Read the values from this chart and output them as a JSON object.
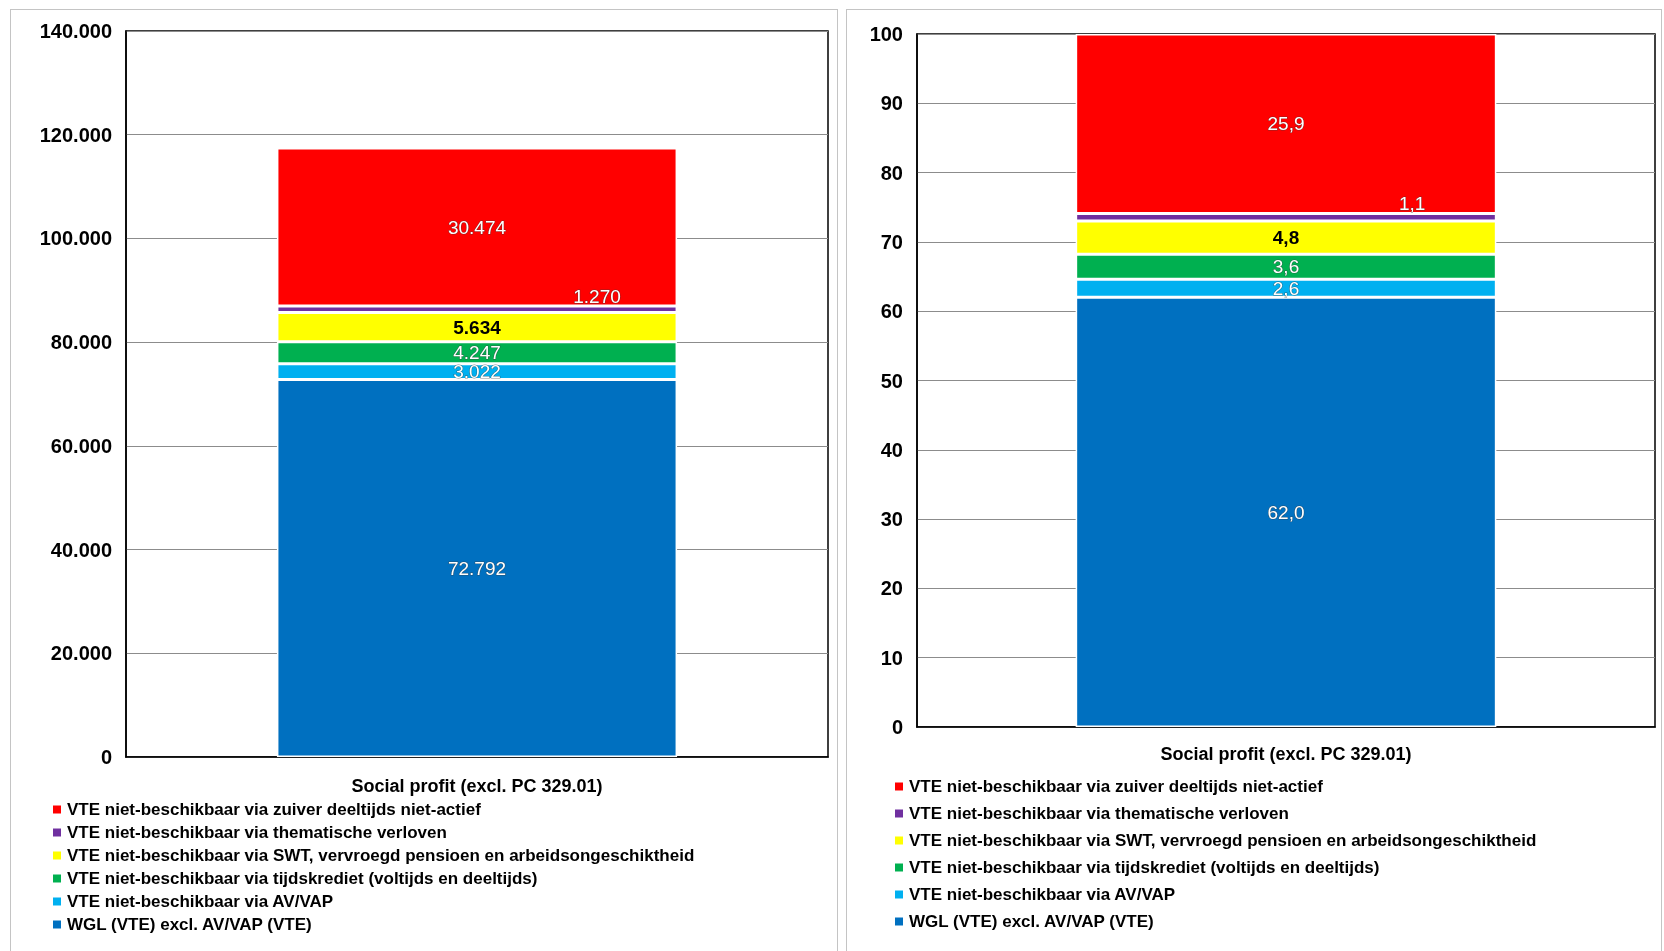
{
  "chart_data": [
    {
      "type": "bar",
      "stacked": true,
      "categories": [
        "Social profit (excl. PC 329.01)"
      ],
      "series": [
        {
          "name": "WGL (VTE) excl. AV/VAP (VTE)",
          "color": "#0070c0",
          "values": [
            72792
          ],
          "value_labels": [
            "72.792"
          ]
        },
        {
          "name": "VTE niet-beschikbaar via AV/VAP",
          "color": "#00b0f0",
          "values": [
            3022
          ],
          "value_labels": [
            "3.022"
          ]
        },
        {
          "name": "VTE niet-beschikbaar via tijdskrediet (voltijds en deeltijds)",
          "color": "#00b050",
          "values": [
            4247
          ],
          "value_labels": [
            "4.247"
          ]
        },
        {
          "name": "VTE niet-beschikbaar via SWT, vervroegd pensioen en arbeidsongeschiktheid",
          "color": "#ffff00",
          "values": [
            5634
          ],
          "value_labels": [
            "5.634"
          ]
        },
        {
          "name": "VTE niet-beschikbaar via thematische verloven",
          "color": "#7030a0",
          "values": [
            1270
          ],
          "value_labels": [
            "1.270"
          ]
        },
        {
          "name": "VTE niet-beschikbaar via zuiver deeltijds niet-actief",
          "color": "#ff0000",
          "values": [
            30474
          ],
          "value_labels": [
            "30.474"
          ]
        }
      ],
      "ylim": [
        0,
        140000
      ],
      "yticks": [
        0,
        {
          "value": 20000,
          "label": "20.000"
        },
        {
          "value": 40000,
          "label": "40.000"
        },
        {
          "value": 60000,
          "label": "60.000"
        },
        {
          "value": 80000,
          "label": "80.000"
        },
        {
          "value": 100000,
          "label": "100.000"
        },
        {
          "value": 120000,
          "label": "120.000"
        },
        {
          "value": 140000,
          "label": "140.000"
        }
      ],
      "grid": "y",
      "legend": "bottom"
    },
    {
      "type": "bar",
      "stacked": true,
      "categories": [
        "Social profit (excl. PC 329.01)"
      ],
      "series": [
        {
          "name": "WGL (VTE) excl. AV/VAP (VTE)",
          "color": "#0070c0",
          "values": [
            62.0
          ],
          "value_labels": [
            "62,0"
          ]
        },
        {
          "name": "VTE niet-beschikbaar via AV/VAP",
          "color": "#00b0f0",
          "values": [
            2.6
          ],
          "value_labels": [
            "2,6"
          ]
        },
        {
          "name": "VTE niet-beschikbaar via tijdskrediet (voltijds en deeltijds)",
          "color": "#00b050",
          "values": [
            3.6
          ],
          "value_labels": [
            "3,6"
          ]
        },
        {
          "name": "VTE niet-beschikbaar via SWT, vervroegd pensioen en arbeidsongeschiktheid",
          "color": "#ffff00",
          "values": [
            4.8
          ],
          "value_labels": [
            "4,8"
          ]
        },
        {
          "name": "VTE niet-beschikbaar via thematische verloven",
          "color": "#7030a0",
          "values": [
            1.1
          ],
          "value_labels": [
            "1,1"
          ]
        },
        {
          "name": "VTE niet-beschikbaar via zuiver deeltijds niet-actief",
          "color": "#ff0000",
          "values": [
            25.9
          ],
          "value_labels": [
            "25,9"
          ]
        }
      ],
      "ylim": [
        0,
        100
      ],
      "yticks": [
        0,
        10,
        20,
        30,
        40,
        50,
        60,
        70,
        80,
        90,
        100
      ],
      "grid": "y",
      "legend": "bottom"
    }
  ]
}
